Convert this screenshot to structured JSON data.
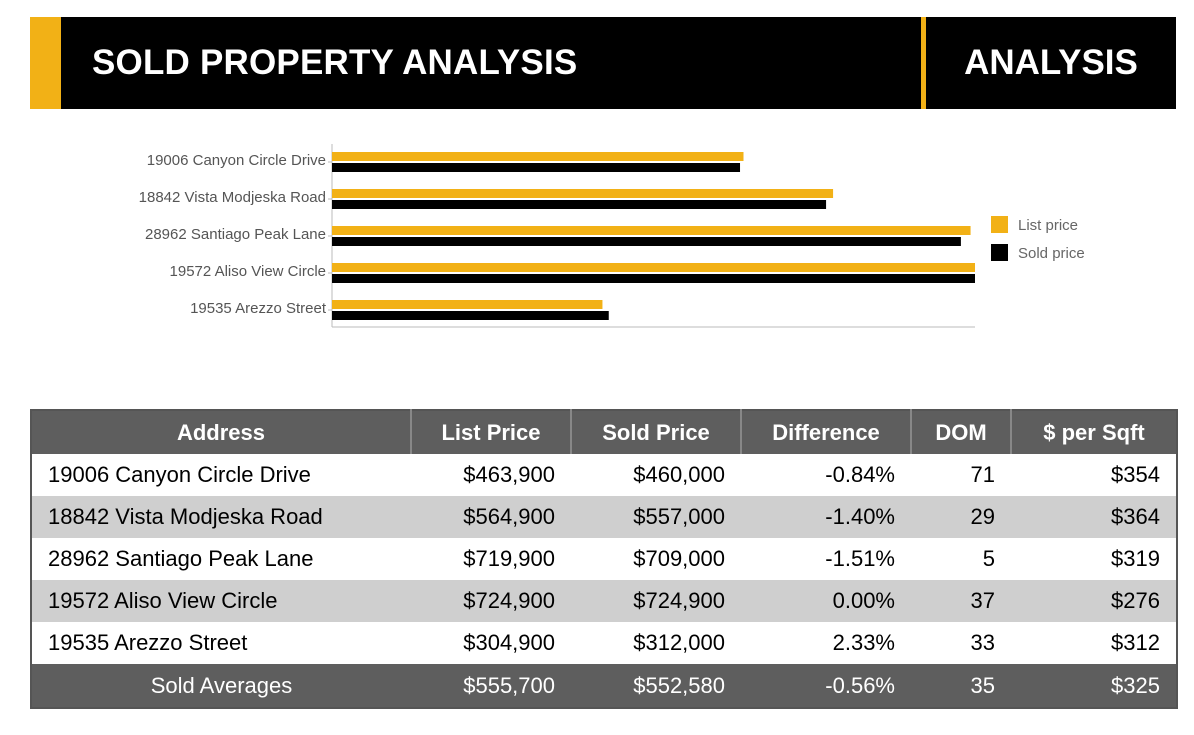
{
  "header": {
    "title": "SOLD PROPERTY ANALYSIS",
    "section": "ANALYSIS"
  },
  "colors": {
    "accent": "#f2b116",
    "dark": "#000000",
    "table_header": "#5e5e5e",
    "row_alt": "#cfcfcf"
  },
  "chart_data": {
    "type": "bar",
    "orientation": "horizontal",
    "categories": [
      "19006 Canyon Circle Drive",
      "18842 Vista Modjeska Road",
      "28962 Santiago Peak Lane",
      "19572 Aliso View Circle",
      "19535 Arezzo Street"
    ],
    "series": [
      {
        "name": "List price",
        "color": "#f2b116",
        "values": [
          463900,
          564900,
          719900,
          724900,
          304900
        ]
      },
      {
        "name": "Sold price",
        "color": "#000000",
        "values": [
          460000,
          557000,
          709000,
          724900,
          312000
        ]
      }
    ],
    "xlim": [
      0,
      724900
    ],
    "title": "",
    "xlabel": "",
    "ylabel": "",
    "legend_position": "right"
  },
  "table": {
    "columns": [
      "Address",
      "List Price",
      "Sold Price",
      "Difference",
      "DOM",
      "$ per Sqft"
    ],
    "rows": [
      [
        "19006 Canyon Circle Drive",
        "$463,900",
        "$460,000",
        "-0.84%",
        "71",
        "$354"
      ],
      [
        "18842 Vista Modjeska Road",
        "$564,900",
        "$557,000",
        "-1.40%",
        "29",
        "$364"
      ],
      [
        "28962 Santiago Peak Lane",
        "$719,900",
        "$709,000",
        "-1.51%",
        "5",
        "$319"
      ],
      [
        "19572 Aliso View Circle",
        "$724,900",
        "$724,900",
        "0.00%",
        "37",
        "$276"
      ],
      [
        "19535 Arezzo Street",
        "$304,900",
        "$312,000",
        "2.33%",
        "33",
        "$312"
      ]
    ],
    "averages": [
      "Sold Averages",
      "$555,700",
      "$552,580",
      "-0.56%",
      "35",
      "$325"
    ]
  }
}
